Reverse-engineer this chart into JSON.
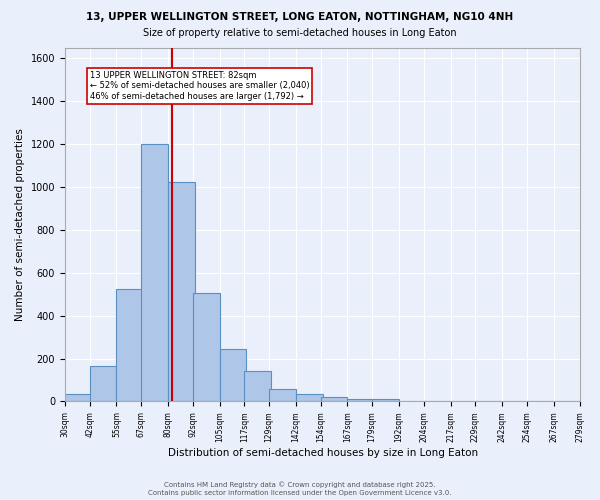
{
  "title_line1": "13, UPPER WELLINGTON STREET, LONG EATON, NOTTINGHAM, NG10 4NH",
  "title_line2": "Size of property relative to semi-detached houses in Long Eaton",
  "xlabel": "Distribution of semi-detached houses by size in Long Eaton",
  "ylabel": "Number of semi-detached properties",
  "bar_left_edges": [
    30,
    42,
    55,
    67,
    80,
    92,
    105,
    117,
    129,
    142,
    154,
    167,
    179,
    192,
    204,
    217,
    229,
    242,
    254,
    267
  ],
  "bar_heights": [
    35,
    165,
    525,
    1200,
    1025,
    505,
    245,
    140,
    60,
    35,
    22,
    12,
    10,
    0,
    0,
    0,
    0,
    0,
    0,
    0
  ],
  "bin_width": 13,
  "bar_color": "#aec6e8",
  "bar_edge_color": "#5a8fc2",
  "tick_labels": [
    "30sqm",
    "42sqm",
    "55sqm",
    "67sqm",
    "80sqm",
    "92sqm",
    "105sqm",
    "117sqm",
    "129sqm",
    "142sqm",
    "154sqm",
    "167sqm",
    "179sqm",
    "192sqm",
    "204sqm",
    "217sqm",
    "229sqm",
    "242sqm",
    "254sqm",
    "267sqm",
    "279sqm"
  ],
  "property_size": 82,
  "vline_color": "#cc0000",
  "annotation_line1": "13 UPPER WELLINGTON STREET: 82sqm",
  "annotation_line2": "← 52% of semi-detached houses are smaller (2,040)",
  "annotation_line3": "46% of semi-detached houses are larger (1,792) →",
  "annotation_box_color": "#ffffff",
  "annotation_box_edge_color": "#cc0000",
  "ylim": [
    0,
    1650
  ],
  "yticks": [
    0,
    200,
    400,
    600,
    800,
    1000,
    1200,
    1400,
    1600
  ],
  "background_color": "#eaf0fb",
  "grid_color": "#ffffff",
  "footer_line1": "Contains HM Land Registry data © Crown copyright and database right 2025.",
  "footer_line2": "Contains public sector information licensed under the Open Government Licence v3.0."
}
